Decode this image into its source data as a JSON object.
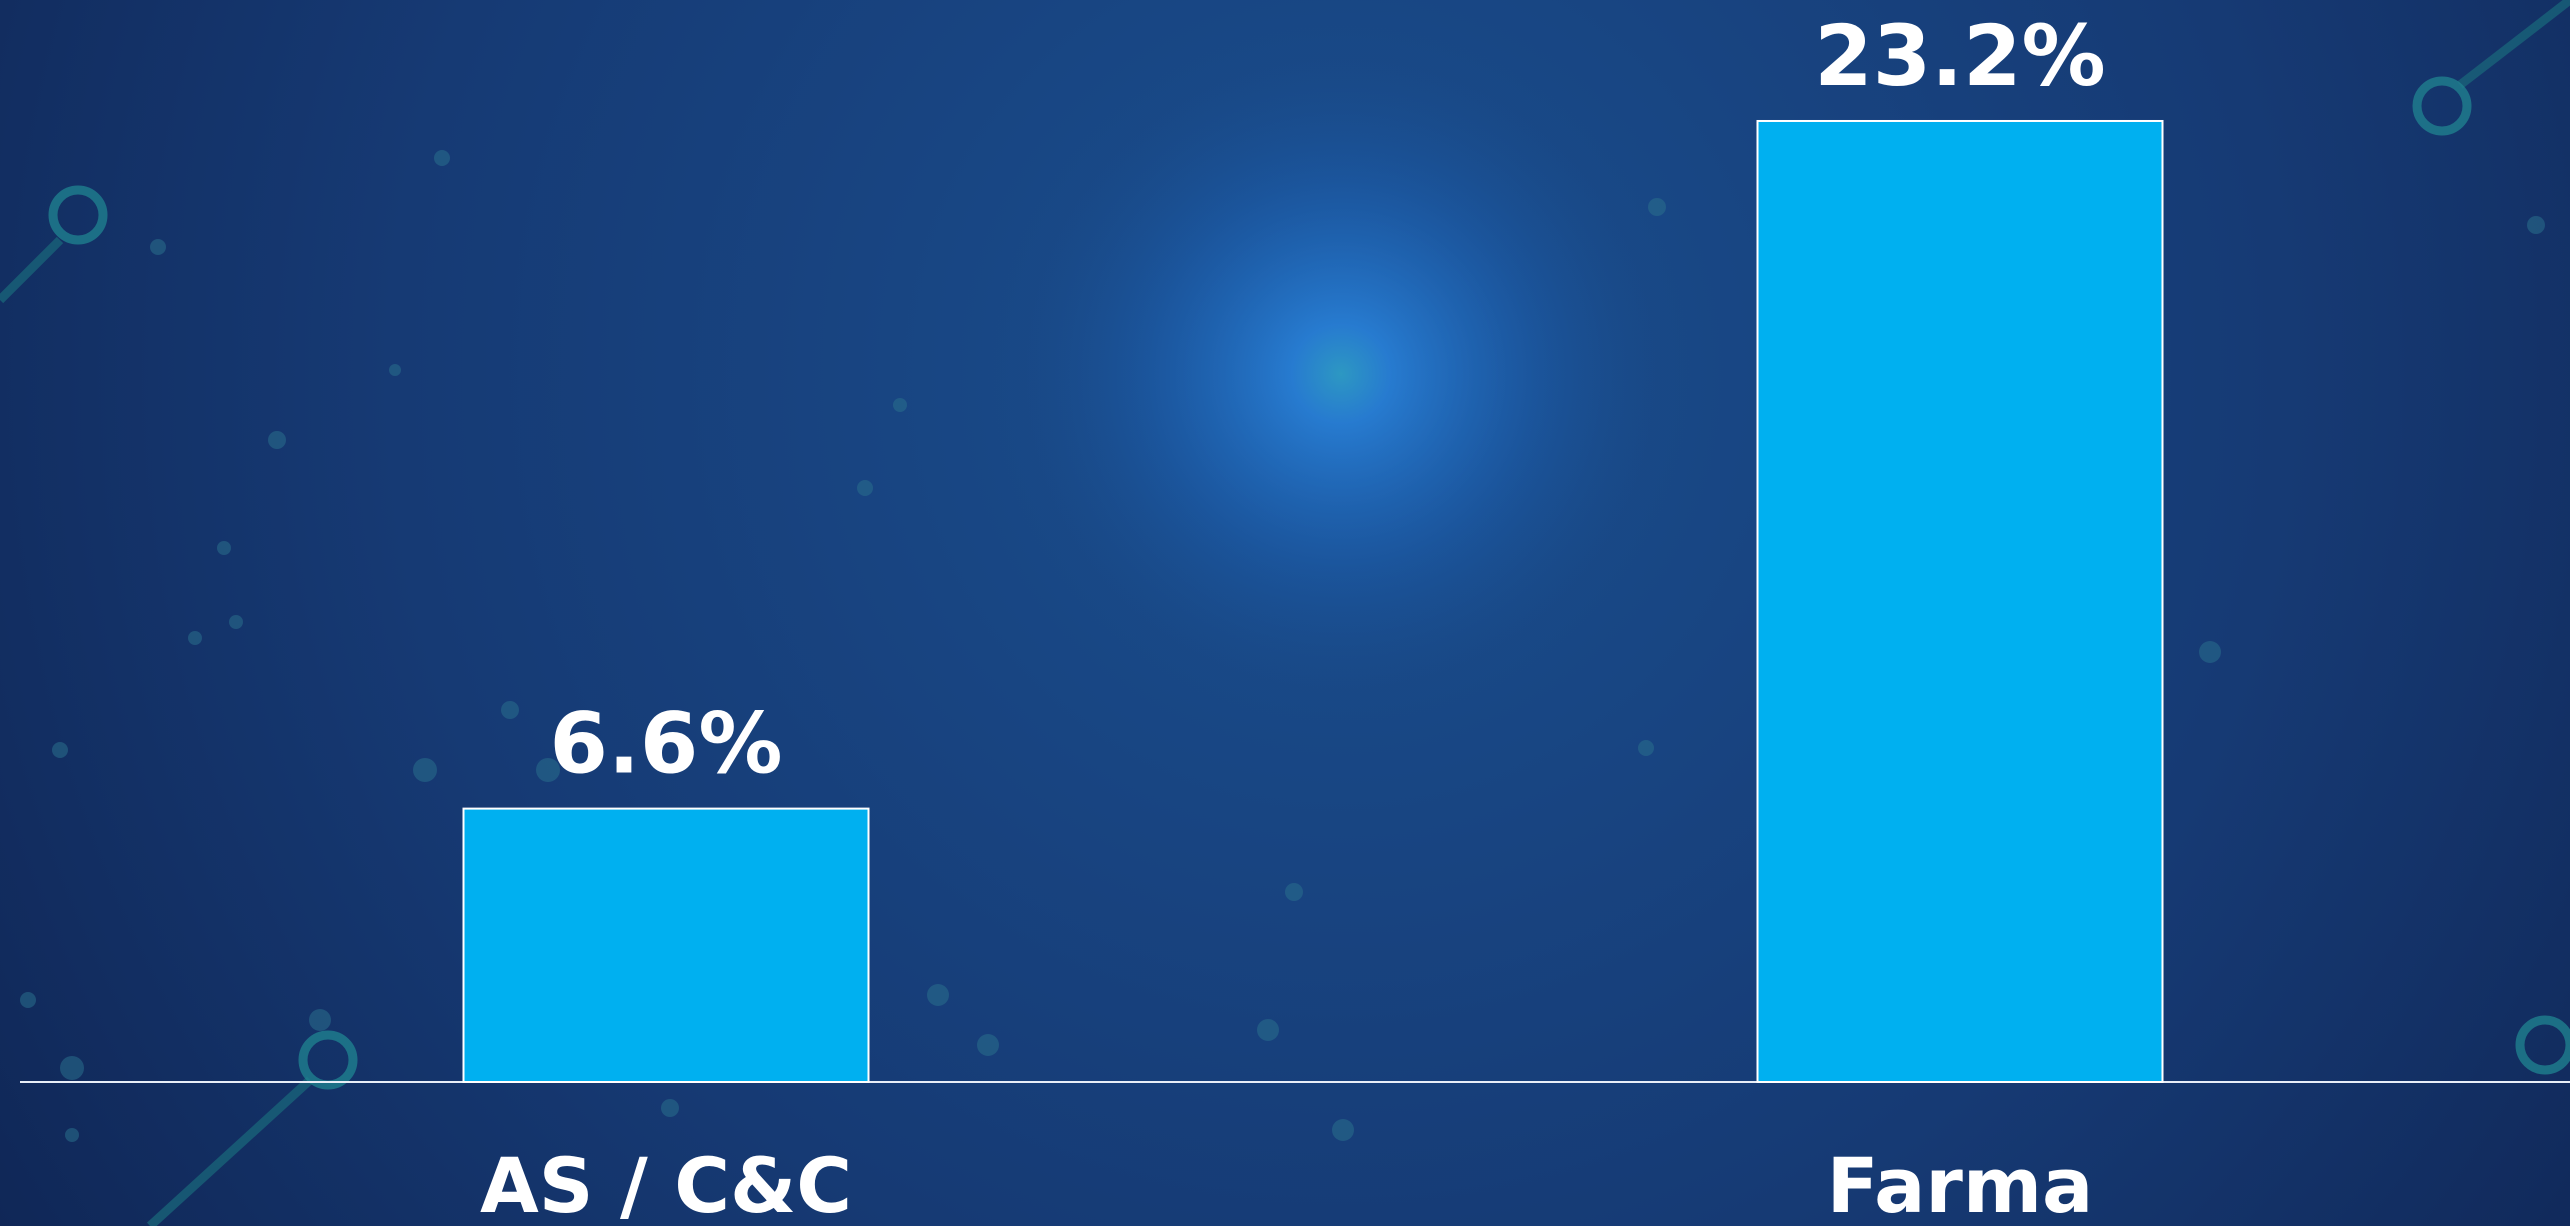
{
  "chart_data": {
    "type": "bar",
    "categories": [
      "AS / C&C",
      "Farma"
    ],
    "values": [
      6.6,
      23.2
    ],
    "value_labels": [
      "6.6%",
      "23.2%"
    ],
    "color": "#00b0f0",
    "ylim": [
      0,
      26
    ]
  }
}
